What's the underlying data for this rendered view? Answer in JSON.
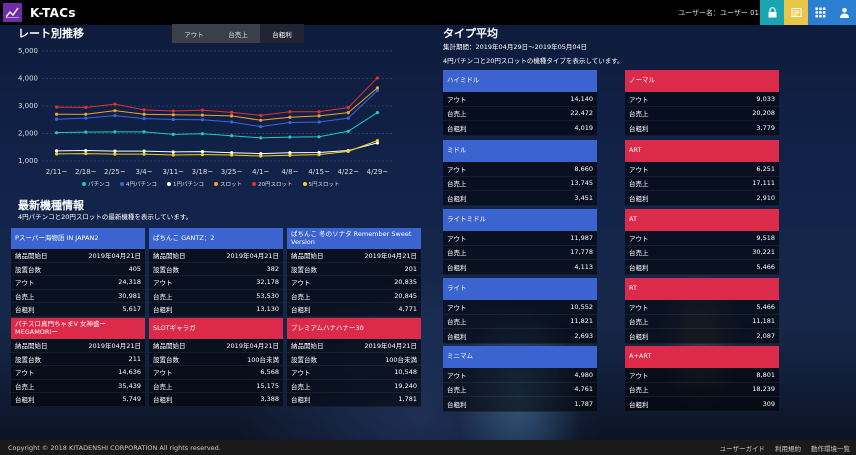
{
  "app": {
    "title": "K-TACs",
    "user_label": "ユーザー名：ユーザー 01"
  },
  "chart_section": {
    "title": "レート別推移",
    "tabs": [
      "アウト",
      "台売上",
      "台粗利"
    ],
    "active_tab": 2
  },
  "chart_data": {
    "type": "line",
    "categories": [
      "2/11~",
      "2/18~",
      "2/25~",
      "3/4~",
      "3/11~",
      "3/18~",
      "3/25~",
      "4/1~",
      "4/8~",
      "4/15~",
      "4/22~",
      "4/29~"
    ],
    "ylim": [
      1000,
      5000
    ],
    "yticks": [
      "1,000",
      "2,000",
      "3,000",
      "4,000",
      "5,000"
    ],
    "series": [
      {
        "name": "パチンコ",
        "color": "#1ec8c8",
        "values": [
          2030,
          2050,
          2060,
          2060,
          1970,
          1990,
          1920,
          1840,
          1870,
          1880,
          2080,
          2760
        ]
      },
      {
        "name": "4円パチンコ",
        "color": "#3a64e0",
        "values": [
          2520,
          2560,
          2650,
          2540,
          2510,
          2500,
          2420,
          2250,
          2400,
          2420,
          2560,
          3560
        ]
      },
      {
        "name": "1円パチンコ",
        "color": "#ffffff",
        "values": [
          1370,
          1380,
          1360,
          1360,
          1330,
          1340,
          1300,
          1270,
          1300,
          1310,
          1380,
          1660
        ]
      },
      {
        "name": "スロット",
        "color": "#f0a030",
        "values": [
          2700,
          2700,
          2830,
          2700,
          2680,
          2670,
          2640,
          2480,
          2590,
          2640,
          2760,
          3660
        ]
      },
      {
        "name": "20円スロット",
        "color": "#e03030",
        "values": [
          2960,
          2950,
          3070,
          2860,
          2820,
          2850,
          2770,
          2660,
          2790,
          2790,
          2940,
          4020
        ]
      },
      {
        "name": "5円スロット",
        "color": "#f5d020",
        "values": [
          1260,
          1270,
          1250,
          1250,
          1220,
          1230,
          1220,
          1180,
          1210,
          1230,
          1350,
          1740
        ]
      }
    ]
  },
  "new_models": {
    "title": "最新機種情報",
    "subtitle": "4円パチンコと20円スロットの最新機種を表示しています。",
    "cards": [
      {
        "name": "Pスーパー海物語 IN JAPAN2",
        "color": "blue",
        "rows": [
          [
            "納品開始日",
            "2019年04月21日"
          ],
          [
            "設置台数",
            "405"
          ],
          [
            "アウト",
            "24,318"
          ],
          [
            "台売上",
            "30,981"
          ],
          [
            "台粗利",
            "5,617"
          ]
        ]
      },
      {
        "name": "ぱちんこ GANTZ：2",
        "color": "blue",
        "rows": [
          [
            "納品開始日",
            "2019年04月21日"
          ],
          [
            "設置台数",
            "382"
          ],
          [
            "アウト",
            "32,178"
          ],
          [
            "台売上",
            "53,530"
          ],
          [
            "台粗利",
            "13,130"
          ]
        ]
      },
      {
        "name": "ぱちんこ 冬のソナタ Remember Sweet Version",
        "color": "blue",
        "rows": [
          [
            "納品開始日",
            "2019年04月21日"
          ],
          [
            "設置台数",
            "201"
          ],
          [
            "アウト",
            "20,835"
          ],
          [
            "台売上",
            "20,845"
          ],
          [
            "台粗利",
            "4,771"
          ]
        ]
      },
      {
        "name": "パチスロ真門ちゃまV 女神盛ーMEGAMORIー",
        "color": "red",
        "rows": [
          [
            "納品開始日",
            "2019年04月21日"
          ],
          [
            "設置台数",
            "211"
          ],
          [
            "アウト",
            "14,636"
          ],
          [
            "台売上",
            "35,439"
          ],
          [
            "台粗利",
            "5,749"
          ]
        ]
      },
      {
        "name": "SLOTギャラガ",
        "color": "red",
        "rows": [
          [
            "納品開始日",
            "2019年04月21日"
          ],
          [
            "設置台数",
            "100台未満"
          ],
          [
            "アウト",
            "6,568"
          ],
          [
            "台売上",
            "15,175"
          ],
          [
            "台粗利",
            "3,388"
          ]
        ]
      },
      {
        "name": "プレミアムハナハナー30",
        "color": "red",
        "rows": [
          [
            "納品開始日",
            "2019年04月21日"
          ],
          [
            "設置台数",
            "100台未満"
          ],
          [
            "アウト",
            "10,548"
          ],
          [
            "台売上",
            "19,240"
          ],
          [
            "台粗利",
            "1,781"
          ]
        ]
      }
    ]
  },
  "type_avg": {
    "title": "タイプ平均",
    "period": "集計期間：2019年04月29日〜2019年05月04日",
    "subtitle": "4円パチンコと20円スロットの機種タイプを表示しています。",
    "left": [
      {
        "name": "ハイミドル",
        "rows": [
          [
            "アウト",
            "14,140"
          ],
          [
            "台売上",
            "22,472"
          ],
          [
            "台粗利",
            "4,019"
          ]
        ]
      },
      {
        "name": "ミドル",
        "rows": [
          [
            "アウト",
            "8,660"
          ],
          [
            "台売上",
            "13,745"
          ],
          [
            "台粗利",
            "3,451"
          ]
        ]
      },
      {
        "name": "ライトミドル",
        "rows": [
          [
            "アウト",
            "11,987"
          ],
          [
            "台売上",
            "17,778"
          ],
          [
            "台粗利",
            "4,113"
          ]
        ]
      },
      {
        "name": "ライト",
        "rows": [
          [
            "アウト",
            "10,552"
          ],
          [
            "台売上",
            "11,821"
          ],
          [
            "台粗利",
            "2,693"
          ]
        ]
      },
      {
        "name": "ミニマム",
        "rows": [
          [
            "アウト",
            "4,980"
          ],
          [
            "台売上",
            "4,761"
          ],
          [
            "台粗利",
            "1,787"
          ]
        ]
      }
    ],
    "right": [
      {
        "name": "ノーマル",
        "rows": [
          [
            "アウト",
            "9,033"
          ],
          [
            "台売上",
            "20,208"
          ],
          [
            "台粗利",
            "3,779"
          ]
        ]
      },
      {
        "name": "ART",
        "rows": [
          [
            "アウト",
            "6,251"
          ],
          [
            "台売上",
            "17,111"
          ],
          [
            "台粗利",
            "2,910"
          ]
        ]
      },
      {
        "name": "AT",
        "rows": [
          [
            "アウト",
            "9,518"
          ],
          [
            "台売上",
            "30,221"
          ],
          [
            "台粗利",
            "5,466"
          ]
        ]
      },
      {
        "name": "RT",
        "rows": [
          [
            "アウト",
            "5,466"
          ],
          [
            "台売上",
            "11,181"
          ],
          [
            "台粗利",
            "2,087"
          ]
        ]
      },
      {
        "name": "A+ART",
        "rows": [
          [
            "アウト",
            "8,801"
          ],
          [
            "台売上",
            "18,239"
          ],
          [
            "台粗利",
            "309"
          ]
        ]
      }
    ]
  },
  "footer": {
    "copyright": "Copyright © 2018 KITADENSHI CORPORATION All rights reserved.",
    "links": [
      "ユーザーガイド",
      "利用規約",
      "動作環境一覧"
    ]
  },
  "toolbar_icons": [
    "lock-icon",
    "note-icon",
    "grid-icon",
    "user-icon"
  ],
  "colors": {
    "blue": "#3b64d0",
    "red": "#dc2a4a",
    "accent_teal": "#1aa6b0",
    "accent_yellow": "#e8c64a",
    "accent_blue": "#2a7fd0"
  }
}
